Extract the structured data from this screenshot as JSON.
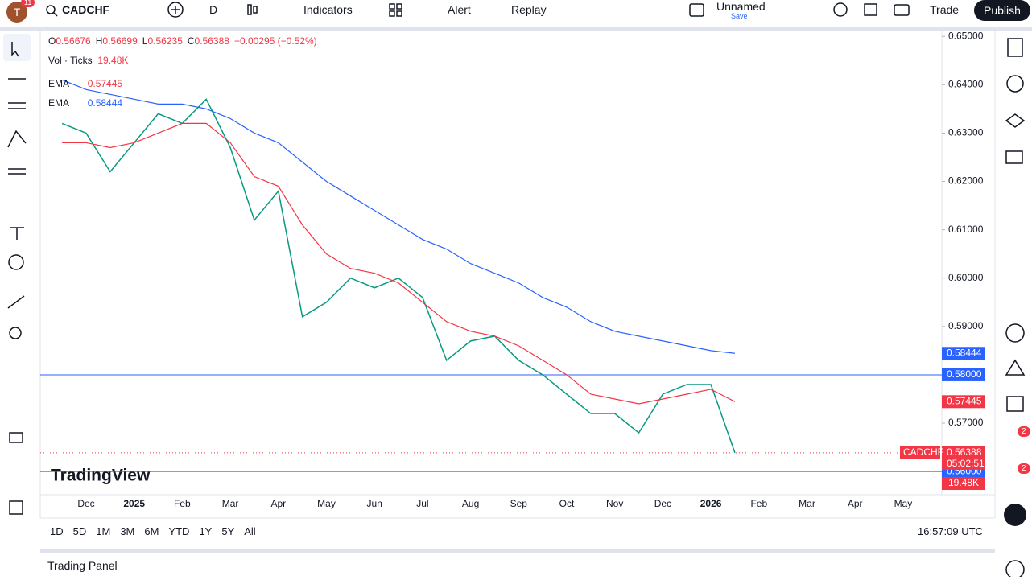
{
  "toolbar": {
    "badge": "11",
    "symbol": "CADCHF",
    "interval": "D",
    "indicators": "Indicators",
    "alert": "Alert",
    "replay": "Replay",
    "layout": "Unnamed",
    "save": "Save",
    "trade": "Trade",
    "publish": "Publish"
  },
  "legend": {
    "ohlc": [
      {
        "k": "O",
        "v": "0.56676"
      },
      {
        "k": "H",
        "v": "0.56699"
      },
      {
        "k": "L",
        "v": "0.56235"
      },
      {
        "k": "C",
        "v": "0.56388"
      }
    ],
    "change": "−0.00295 (−0.52%)",
    "vol": "Vol · Ticks",
    "vol_value": "19.48K",
    "ema": [
      {
        "name": "EMA",
        "value": "0.57445"
      },
      {
        "name": "EMA",
        "value": "0.58444"
      }
    ]
  },
  "watermark": "TradingView",
  "chart_data": {
    "type": "line",
    "categories": [
      null,
      "Dec",
      null,
      "2025",
      null,
      "Feb",
      null,
      "Mar",
      null,
      "Apr",
      null,
      "May",
      null,
      "Jun",
      null,
      "Jul",
      null,
      "Aug",
      null,
      "Sep",
      null,
      "Oct",
      null,
      "Nov",
      null,
      "Dec",
      null,
      "2026",
      null,
      "Feb",
      null,
      "Mar",
      null,
      "Apr",
      null,
      "May"
    ],
    "series": [
      {
        "name": "CADCHF",
        "color": "#089981",
        "values": [
          0.632,
          0.63,
          0.622,
          0.628,
          0.634,
          0.632,
          0.637,
          0.627,
          0.612,
          0.618,
          0.592,
          0.595,
          0.6,
          0.598,
          0.6,
          0.596,
          0.583,
          0.587,
          0.588,
          0.583,
          0.58,
          0.576,
          0.572,
          0.572,
          0.568,
          0.576,
          0.578,
          0.578,
          0.56388,
          null,
          null,
          null,
          null,
          null,
          null,
          null
        ]
      },
      {
        "name": "EMA",
        "color": "#f23645",
        "values": [
          0.628,
          0.628,
          0.627,
          0.628,
          0.63,
          0.632,
          0.632,
          0.628,
          0.621,
          0.619,
          0.611,
          0.605,
          0.602,
          0.601,
          0.599,
          0.595,
          0.591,
          0.589,
          0.588,
          0.586,
          0.583,
          0.58,
          0.576,
          0.575,
          0.574,
          0.575,
          0.576,
          0.577,
          0.57445,
          null,
          null,
          null,
          null,
          null,
          null,
          null
        ]
      },
      {
        "name": "EMA",
        "color": "#2962ff",
        "values": [
          0.641,
          0.639,
          0.638,
          0.637,
          0.636,
          0.636,
          0.635,
          0.633,
          0.63,
          0.628,
          0.624,
          0.62,
          0.617,
          0.614,
          0.611,
          0.608,
          0.606,
          0.603,
          0.601,
          0.599,
          0.596,
          0.594,
          0.591,
          0.589,
          0.588,
          0.587,
          0.586,
          0.585,
          0.58444,
          null,
          null,
          null,
          null,
          null,
          null,
          null
        ]
      }
    ],
    "ylim": [
      0.5552,
      0.6512
    ],
    "yticks": [
      {
        "value": 0.65,
        "label": "0.65000"
      },
      {
        "value": 0.64,
        "label": "0.64000"
      },
      {
        "value": 0.63,
        "label": "0.63000"
      },
      {
        "value": 0.62,
        "label": "0.62000"
      },
      {
        "value": 0.61,
        "label": "0.61000"
      },
      {
        "value": 0.6,
        "label": "0.60000"
      },
      {
        "value": 0.59,
        "label": "0.59000"
      },
      {
        "value": 0.57,
        "label": "0.57000"
      }
    ],
    "hlines": [
      0.58,
      0.56
    ],
    "hline_color": "#2962ff",
    "price_labels": [
      {
        "value": 0.58444,
        "label": "0.58444",
        "color": "#2962ff"
      },
      {
        "value": 0.58,
        "label": "0.58000",
        "color": "#2962ff"
      },
      {
        "value": 0.57445,
        "label": "0.57445",
        "color": "#f23645"
      },
      {
        "value": 0.56388,
        "label": "0.56388",
        "color": "#f23645"
      },
      {
        "value": 0.56,
        "label": "0.56000",
        "color": "#2962ff"
      }
    ],
    "last_symbol": "CADCHF",
    "countdown": "05:02:51",
    "volume_label": "19.48K"
  },
  "ranges": [
    "1D",
    "5D",
    "1M",
    "3M",
    "6M",
    "YTD",
    "1Y",
    "5Y",
    "All"
  ],
  "clock": "16:57:09 UTC",
  "panel": "Trading Panel",
  "badges": [
    "2",
    "2"
  ]
}
